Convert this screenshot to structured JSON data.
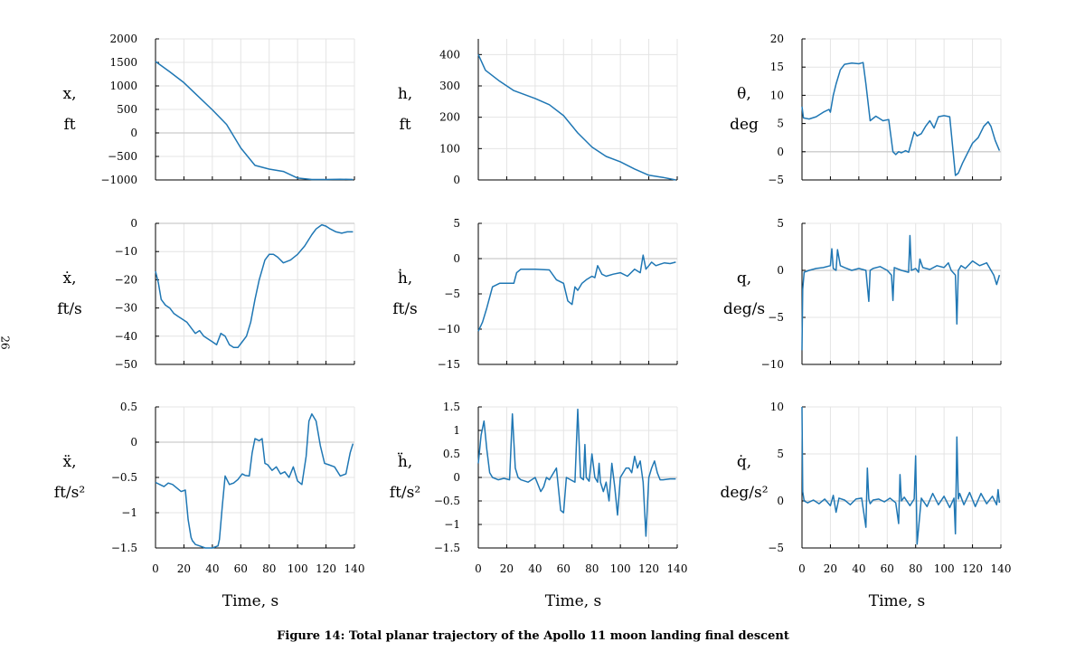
{
  "page_number": "26",
  "caption": "Figure 14: Total planar trajectory of the Apollo 11 moon landing final descent",
  "colors": {
    "series": "#1f77b4",
    "grid": "#e4e4e4",
    "zero_line": "#cccccc",
    "axis": "#000000"
  },
  "chart_data": [
    {
      "type": "line",
      "xlabel": "",
      "ylabel": [
        "x,",
        "ft"
      ],
      "xlim": [
        0,
        140
      ],
      "ylim": [
        -1000,
        2000
      ],
      "yticks": [
        -1000,
        -500,
        0,
        500,
        1000,
        1500,
        2000
      ],
      "ytick_labels": [
        "−1000",
        "−500",
        "0",
        "500",
        "1000",
        "1500",
        "2000"
      ],
      "xticks": [
        0,
        20,
        40,
        60,
        80,
        100,
        120,
        140
      ],
      "xtick_labels": [],
      "grid": true,
      "x": [
        0,
        10,
        20,
        30,
        40,
        50,
        60,
        70,
        80,
        90,
        100,
        110,
        120,
        130,
        139
      ],
      "y": [
        1520,
        1300,
        1070,
        780,
        490,
        180,
        -320,
        -690,
        -770,
        -820,
        -960,
        -990,
        -990,
        -985,
        -990
      ]
    },
    {
      "type": "line",
      "xlabel": "",
      "ylabel": [
        "h,",
        "ft"
      ],
      "xlim": [
        0,
        140
      ],
      "ylim": [
        0,
        450
      ],
      "yticks": [
        0,
        100,
        200,
        300,
        400
      ],
      "ytick_labels": [
        "0",
        "100",
        "200",
        "300",
        "400"
      ],
      "xticks": [
        0,
        20,
        40,
        60,
        80,
        100,
        120,
        140
      ],
      "xtick_labels": [],
      "grid": true,
      "x": [
        0,
        5,
        15,
        25,
        40,
        50,
        60,
        70,
        80,
        90,
        100,
        110,
        120,
        130,
        139
      ],
      "y": [
        400,
        350,
        315,
        285,
        260,
        240,
        205,
        150,
        105,
        75,
        58,
        35,
        15,
        8,
        0
      ]
    },
    {
      "type": "line",
      "xlabel": "",
      "ylabel": [
        "θ,",
        "deg"
      ],
      "xlim": [
        0,
        140
      ],
      "ylim": [
        -5,
        20
      ],
      "yticks": [
        -5,
        0,
        5,
        10,
        15,
        20
      ],
      "ytick_labels": [
        "−5",
        "0",
        "5",
        "10",
        "15",
        "20"
      ],
      "xticks": [
        0,
        20,
        40,
        60,
        80,
        100,
        120,
        140
      ],
      "xtick_labels": [],
      "grid": true,
      "x": [
        0,
        1,
        5,
        10,
        15,
        19,
        20,
        22,
        24,
        27,
        30,
        35,
        40,
        43,
        45,
        48,
        52,
        57,
        61,
        64,
        66,
        68,
        70,
        73,
        75,
        79,
        81,
        84,
        87,
        90,
        93,
        96,
        100,
        104,
        108,
        110,
        113,
        116,
        120,
        124,
        128,
        131,
        133,
        136,
        139
      ],
      "y": [
        8,
        6,
        5.8,
        6.2,
        7,
        7.5,
        7,
        10,
        12,
        14.5,
        15.5,
        15.7,
        15.6,
        15.8,
        12,
        5.5,
        6.3,
        5.5,
        5.7,
        0,
        -0.5,
        0,
        -0.2,
        0.2,
        -0.1,
        3.5,
        2.8,
        3.2,
        4.5,
        5.5,
        4.2,
        6.2,
        6.4,
        6.2,
        -4.2,
        -3.8,
        -2,
        -0.5,
        1.5,
        2.5,
        4.5,
        5.3,
        4.5,
        2,
        0.2
      ]
    },
    {
      "type": "line",
      "xlabel": "",
      "ylabel": [
        "ẋ,",
        "ft/s"
      ],
      "xlim": [
        0,
        140
      ],
      "ylim": [
        -50,
        0
      ],
      "yticks": [
        -50,
        -40,
        -30,
        -20,
        -10,
        0
      ],
      "ytick_labels": [
        "−50",
        "−40",
        "−30",
        "−20",
        "−10",
        "0"
      ],
      "xticks": [
        0,
        20,
        40,
        60,
        80,
        100,
        120,
        140
      ],
      "xtick_labels": [],
      "grid": true,
      "x": [
        0,
        2,
        4,
        7,
        10,
        13,
        16,
        19,
        22,
        25,
        28,
        31,
        34,
        37,
        40,
        43,
        46,
        49,
        52,
        55,
        58,
        61,
        64,
        67,
        70,
        73,
        77,
        80,
        83,
        86,
        90,
        95,
        100,
        105,
        110,
        113,
        117,
        120,
        123,
        127,
        131,
        135,
        139
      ],
      "y": [
        -17,
        -21,
        -27,
        -29,
        -30,
        -32,
        -33,
        -34,
        -35,
        -37,
        -39,
        -38,
        -40,
        -41,
        -42,
        -43,
        -39,
        -40,
        -43,
        -44,
        -44,
        -42,
        -40,
        -35,
        -27,
        -20,
        -13,
        -11,
        -11,
        -12,
        -14,
        -13,
        -11,
        -8,
        -4,
        -2,
        -0.5,
        -1,
        -2,
        -3,
        -3.5,
        -3,
        -3
      ]
    },
    {
      "type": "line",
      "xlabel": "",
      "ylabel": [
        "ḣ,",
        "ft/s"
      ],
      "xlim": [
        0,
        140
      ],
      "ylim": [
        -15,
        5
      ],
      "yticks": [
        -15,
        -10,
        -5,
        0,
        5
      ],
      "ytick_labels": [
        "−15",
        "−10",
        "−5",
        "0",
        "5"
      ],
      "xticks": [
        0,
        20,
        40,
        60,
        80,
        100,
        120,
        140
      ],
      "xtick_labels": [],
      "grid": true,
      "x": [
        0,
        3,
        6,
        10,
        15,
        20,
        25,
        27,
        30,
        40,
        50,
        55,
        60,
        63,
        66,
        68,
        70,
        73,
        76,
        80,
        82,
        84,
        87,
        90,
        95,
        100,
        105,
        110,
        114,
        116,
        118,
        120,
        122,
        125,
        128,
        131,
        135,
        139
      ],
      "y": [
        -10.3,
        -9,
        -7,
        -4,
        -3.5,
        -3.5,
        -3.5,
        -2,
        -1.5,
        -1.5,
        -1.6,
        -3,
        -3.5,
        -6,
        -6.5,
        -4,
        -4.5,
        -3.5,
        -3,
        -2.5,
        -2.7,
        -1,
        -2.2,
        -2.5,
        -2.2,
        -2,
        -2.5,
        -1.5,
        -2,
        0.5,
        -1.5,
        -1,
        -0.5,
        -1,
        -0.8,
        -0.6,
        -0.7,
        -0.5
      ]
    },
    {
      "type": "line",
      "xlabel": "",
      "ylabel": [
        "q,",
        "deg/s"
      ],
      "xlim": [
        0,
        140
      ],
      "ylim": [
        -10,
        5
      ],
      "yticks": [
        -10,
        -5,
        0,
        5
      ],
      "ytick_labels": [
        "−10",
        "−5",
        "0",
        "5"
      ],
      "xticks": [
        0,
        20,
        40,
        60,
        80,
        100,
        120,
        140
      ],
      "xtick_labels": [],
      "grid": true,
      "x": [
        0,
        0.5,
        1.5,
        5,
        10,
        15,
        20,
        21,
        22,
        24,
        25,
        27,
        30,
        35,
        40,
        45,
        47,
        48,
        50,
        55,
        60,
        63,
        64,
        65,
        70,
        75,
        76,
        77,
        80,
        82,
        83,
        85,
        90,
        95,
        100,
        103,
        105,
        108,
        109,
        110,
        112,
        115,
        120,
        125,
        130,
        135,
        137,
        139
      ],
      "y": [
        -8.5,
        -2,
        -0.2,
        0,
        0.2,
        0.3,
        0.5,
        2.3,
        0.2,
        0,
        2.2,
        0.5,
        0.3,
        0,
        0.2,
        0,
        -3.3,
        0,
        0.2,
        0.4,
        0,
        -0.5,
        -3.2,
        0.3,
        0,
        -0.2,
        3.7,
        0,
        0.2,
        -0.2,
        1.2,
        0.3,
        0.1,
        0.5,
        0.3,
        0.8,
        0,
        -0.5,
        -5.7,
        0,
        0.5,
        0.2,
        1,
        0.5,
        0.8,
        -0.5,
        -1.5,
        -0.5
      ]
    },
    {
      "type": "line",
      "xlabel": "Time, s",
      "ylabel": [
        "ẍ,",
        "ft/s²"
      ],
      "xlim": [
        0,
        140
      ],
      "ylim": [
        -1.5,
        0.5
      ],
      "yticks": [
        -1.5,
        -1,
        -0.5,
        0,
        0.5
      ],
      "ytick_labels": [
        "−1.5",
        "−1",
        "−0.5",
        "0",
        "0.5"
      ],
      "xticks": [
        0,
        20,
        40,
        60,
        80,
        100,
        120,
        140
      ],
      "xtick_labels": [
        "0",
        "20",
        "40",
        "60",
        "80",
        "100",
        "120",
        "140"
      ],
      "grid": true,
      "x": [
        0,
        3,
        6,
        9,
        12,
        15,
        18,
        21,
        23,
        25,
        26,
        27,
        28,
        31,
        35,
        40,
        44,
        45,
        47,
        49,
        52,
        55,
        58,
        61,
        63,
        66,
        68,
        70,
        73,
        75,
        77,
        79,
        82,
        85,
        88,
        91,
        94,
        97,
        100,
        103,
        106,
        108,
        110,
        113,
        116,
        119,
        122,
        126,
        130,
        134,
        137,
        139
      ],
      "y": [
        -0.57,
        -0.6,
        -0.63,
        -0.58,
        -0.6,
        -0.65,
        -0.7,
        -0.68,
        -1.1,
        -1.35,
        -1.4,
        -1.42,
        -1.45,
        -1.47,
        -1.5,
        -1.5,
        -1.47,
        -1.38,
        -0.9,
        -0.48,
        -0.6,
        -0.58,
        -0.53,
        -0.45,
        -0.47,
        -0.48,
        -0.15,
        0.05,
        0.02,
        0.05,
        -0.3,
        -0.32,
        -0.4,
        -0.35,
        -0.45,
        -0.42,
        -0.5,
        -0.35,
        -0.55,
        -0.6,
        -0.2,
        0.3,
        0.4,
        0.3,
        -0.05,
        -0.3,
        -0.32,
        -0.35,
        -0.48,
        -0.45,
        -0.15,
        -0.02
      ]
    },
    {
      "type": "line",
      "xlabel": "Time, s",
      "ylabel": [
        "ḧ,",
        "ft/s²"
      ],
      "xlim": [
        0,
        140
      ],
      "ylim": [
        -1.5,
        1.5
      ],
      "yticks": [
        -1.5,
        -1,
        -0.5,
        0,
        0.5,
        1,
        1.5
      ],
      "ytick_labels": [
        "−1.5",
        "−1",
        "−0.5",
        "0",
        "0.5",
        "1",
        "1.5"
      ],
      "xticks": [
        0,
        20,
        40,
        60,
        80,
        100,
        120,
        140
      ],
      "xtick_labels": [
        "0",
        "20",
        "40",
        "60",
        "80",
        "100",
        "120",
        "140"
      ],
      "grid": true,
      "x": [
        0,
        2,
        4,
        6,
        8,
        10,
        14,
        18,
        22,
        24,
        26,
        28,
        30,
        35,
        40,
        44,
        46,
        48,
        50,
        55,
        58,
        60,
        62,
        65,
        68,
        70,
        72,
        74,
        75,
        76,
        78,
        80,
        82,
        84,
        85,
        86,
        88,
        90,
        92,
        94,
        96,
        98,
        100,
        104,
        106,
        108,
        110,
        112,
        114,
        116,
        118,
        120,
        122,
        124,
        126,
        128,
        130,
        135,
        139
      ],
      "y": [
        0.3,
        0.9,
        1.2,
        0.6,
        0.1,
        0.0,
        -0.05,
        -0.02,
        -0.05,
        1.35,
        0.2,
        0.0,
        -0.05,
        -0.1,
        0.0,
        -0.3,
        -0.2,
        0.0,
        -0.05,
        0.2,
        -0.7,
        -0.75,
        0.0,
        -0.05,
        -0.1,
        1.45,
        0.0,
        -0.05,
        0.7,
        0.0,
        -0.08,
        0.5,
        0.0,
        -0.1,
        0.3,
        -0.1,
        -0.3,
        -0.1,
        -0.5,
        0.3,
        -0.2,
        -0.8,
        0.0,
        0.2,
        0.2,
        0.1,
        0.45,
        0.2,
        0.35,
        -0.1,
        -1.25,
        0.0,
        0.2,
        0.35,
        0.1,
        -0.05,
        -0.05,
        -0.03,
        -0.03
      ]
    },
    {
      "type": "line",
      "xlabel": "Time, s",
      "ylabel": [
        "q̇,",
        "deg/s²"
      ],
      "xlim": [
        0,
        140
      ],
      "ylim": [
        -5,
        10
      ],
      "yticks": [
        -5,
        0,
        5,
        10
      ],
      "ytick_labels": [
        "−5",
        "0",
        "5",
        "10"
      ],
      "xticks": [
        0,
        20,
        40,
        60,
        80,
        100,
        120,
        140
      ],
      "xtick_labels": [
        "0",
        "20",
        "40",
        "60",
        "80",
        "100",
        "120",
        "140"
      ],
      "grid": true,
      "x": [
        0,
        0.5,
        1.5,
        4,
        8,
        12,
        16,
        20,
        22,
        24,
        26,
        30,
        34,
        38,
        42,
        45,
        46,
        47,
        48,
        50,
        54,
        58,
        62,
        66,
        68,
        69,
        70,
        72,
        76,
        79,
        80,
        81,
        84,
        88,
        92,
        96,
        100,
        104,
        107,
        108,
        109,
        110,
        111,
        114,
        118,
        122,
        126,
        130,
        134,
        137,
        138,
        139
      ],
      "y": [
        10,
        1,
        0,
        -0.2,
        0.1,
        -0.3,
        0.2,
        -0.5,
        0.6,
        -1.2,
        0.3,
        0.1,
        -0.4,
        0.2,
        0.3,
        -2.8,
        3.5,
        0.2,
        -0.3,
        0.1,
        0.2,
        -0.1,
        0.3,
        -0.2,
        -2.4,
        2.8,
        0,
        0.4,
        -0.5,
        0.2,
        4.8,
        -4.6,
        0.3,
        -0.6,
        0.8,
        -0.4,
        0.5,
        -0.7,
        0.3,
        -3.5,
        6.8,
        0.2,
        0.8,
        -0.4,
        0.9,
        -0.6,
        0.8,
        -0.3,
        0.5,
        -0.4,
        1.2,
        -0.2
      ]
    }
  ]
}
